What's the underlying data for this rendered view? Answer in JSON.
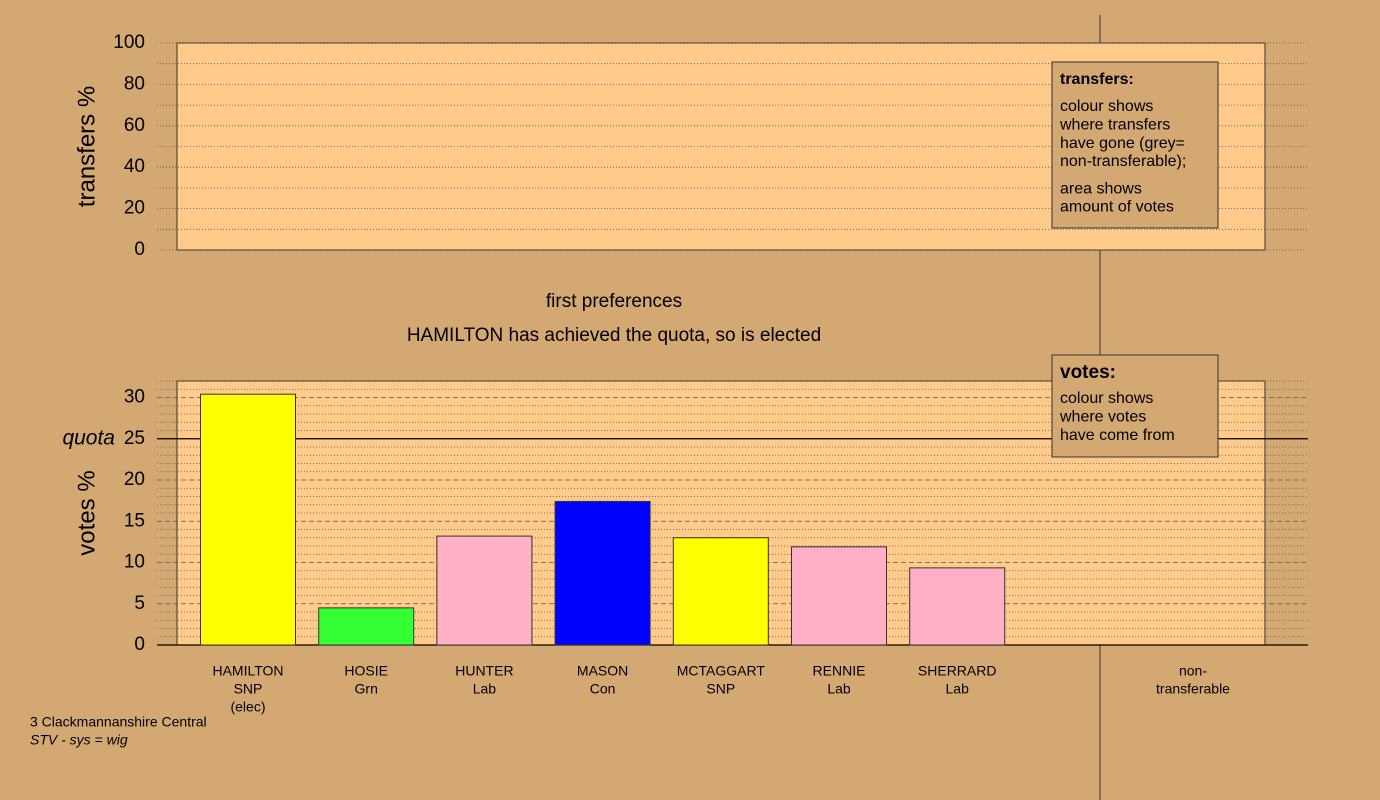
{
  "chart_data": [
    {
      "type": "bar",
      "y_label": "transfers %",
      "ylim": [
        0,
        100
      ],
      "yticks": [
        0,
        20,
        40,
        60,
        80,
        100
      ],
      "minor_yticks": [
        10,
        30,
        50,
        70,
        90
      ],
      "categories": [],
      "values": [],
      "note": {
        "title": "transfers:",
        "paragraphs": [
          [
            "colour shows",
            "where transfers",
            "have gone (grey=",
            "non-transferable);"
          ],
          [
            "area shows",
            "amount of votes"
          ]
        ]
      }
    },
    {
      "type": "bar",
      "y_label": "votes %",
      "ylim": [
        0,
        32
      ],
      "yticks": [
        0,
        5,
        10,
        15,
        20,
        25,
        30
      ],
      "minor_yticks": [
        1,
        2,
        3,
        4,
        6,
        7,
        8,
        9,
        11,
        12,
        13,
        14,
        16,
        17,
        18,
        19,
        21,
        22,
        23,
        24,
        26,
        27,
        28,
        29,
        31,
        32
      ],
      "reference_line": {
        "value": 25,
        "label": "quota"
      },
      "categories": [
        [
          "HAMILTON",
          "SNP",
          "(elec)"
        ],
        [
          "HOSIE",
          "Grn"
        ],
        [
          "HUNTER",
          "Lab"
        ],
        [
          "MASON",
          "Con"
        ],
        [
          "MCTAGGART",
          "SNP"
        ],
        [
          "RENNIE",
          "Lab"
        ],
        [
          "SHERRARD",
          "Lab"
        ]
      ],
      "values": [
        30.4,
        4.5,
        13.2,
        17.4,
        13.0,
        11.9,
        9.35
      ],
      "colors": [
        "#ffff00",
        "#33ff33",
        "#ffb0c4",
        "#0000ff",
        "#ffff00",
        "#ffb0c4",
        "#ffb0c4"
      ],
      "nontransferable_label": [
        "non-",
        "transferable"
      ],
      "note": {
        "title": "votes:",
        "paragraphs": [
          [
            "colour shows",
            "where votes",
            "have come from"
          ]
        ]
      }
    }
  ],
  "captions": [
    "first preferences",
    "HAMILTON has achieved the quota, so is elected"
  ],
  "footer": [
    "3 Clackmannanshire Central",
    "STV - sys = wig"
  ]
}
